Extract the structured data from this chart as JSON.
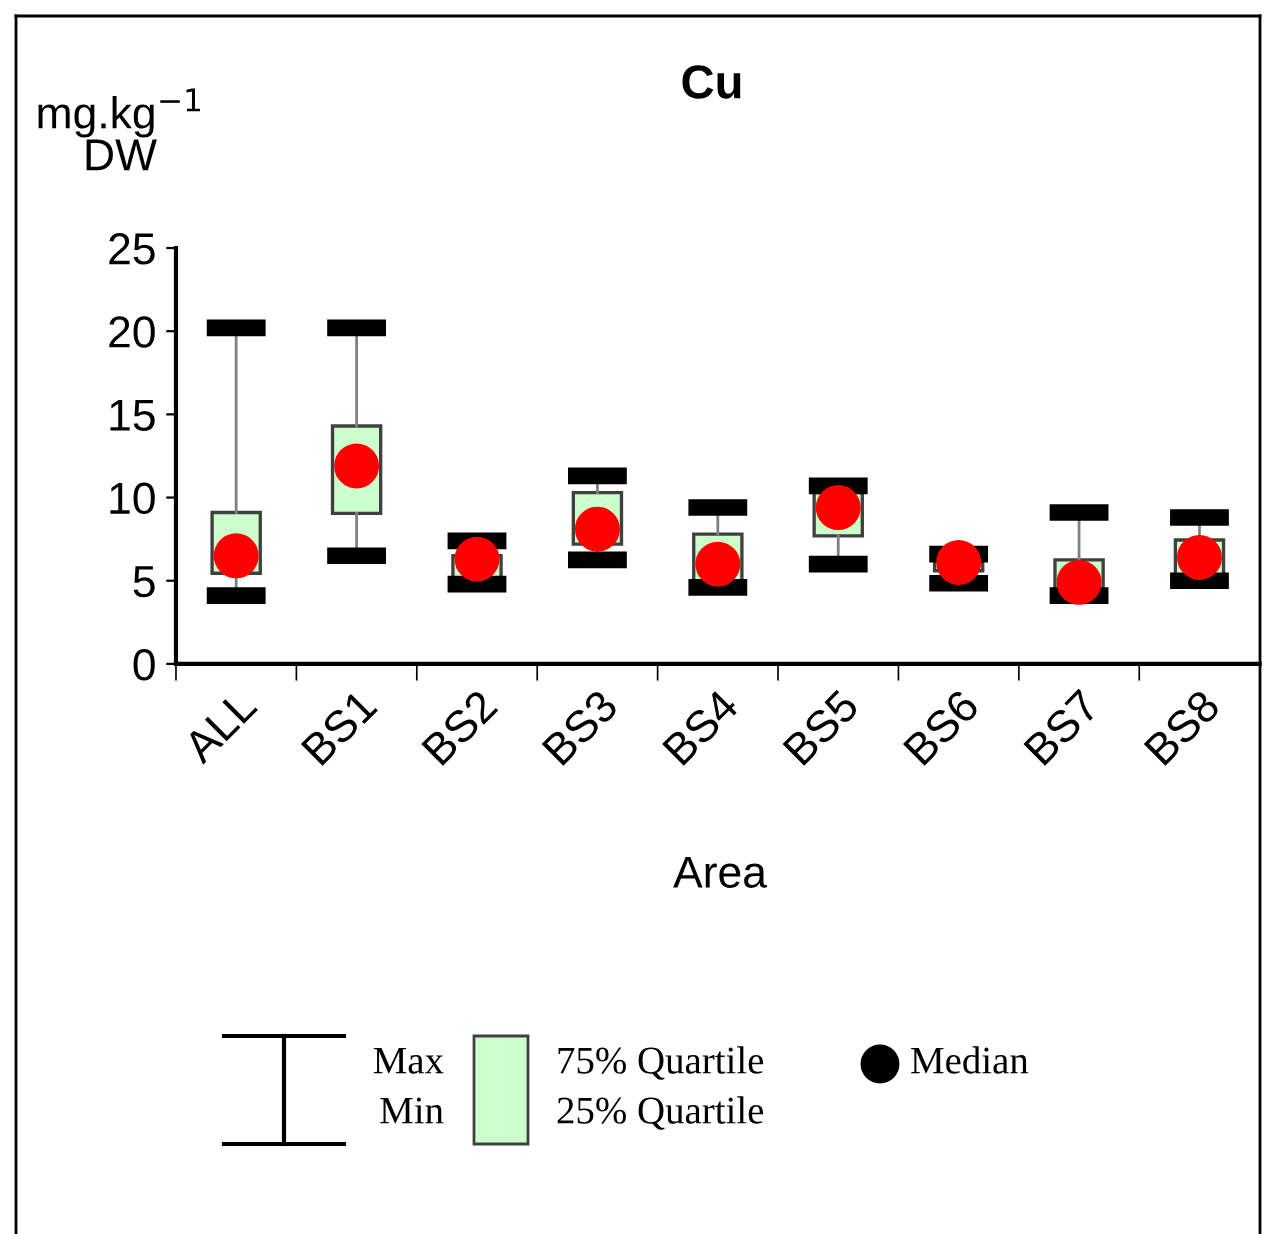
{
  "chart_data": {
    "type": "box",
    "title": "Cu",
    "ylabel": "mg.kg$^{−1}$\nDW",
    "xlabel": "Area",
    "categories": [
      "ALL",
      "BS1",
      "BS2",
      "BS3",
      "BS4",
      "BS5",
      "BS6",
      "BS7",
      "BS8"
    ],
    "color": "#ccffcc",
    "boxes": [
      {
        "low": 4.1,
        "q1": 5.45,
        "median": 6.5,
        "q3": 9.1,
        "high": 20.2
      },
      {
        "low": 6.5,
        "q1": 9.05,
        "median": 11.9,
        "q3": 14.3,
        "high": 20.2
      },
      {
        "low": 4.8,
        "q1": 4.9,
        "median": 6.3,
        "q3": 6.5,
        "high": 7.4
      },
      {
        "low": 6.25,
        "q1": 7.2,
        "median": 8.1,
        "q3": 10.3,
        "high": 11.3
      },
      {
        "low": 4.6,
        "q1": 4.9,
        "median": 6.0,
        "q3": 7.8,
        "high": 9.4
      },
      {
        "low": 6.0,
        "q1": 7.7,
        "median": 9.4,
        "q3": 10.3,
        "high": 10.7
      },
      {
        "low": 4.85,
        "q1": 5.6,
        "median": 6.1,
        "q3": 6.4,
        "high": 6.6
      },
      {
        "low": 4.1,
        "q1": 4.45,
        "median": 4.9,
        "q3": 6.25,
        "high": 9.1
      },
      {
        "low": 5.0,
        "q1": 5.3,
        "median": 6.4,
        "q3": 7.45,
        "high": 8.8
      }
    ],
    "ylim": [
      0,
      25
    ],
    "yticks": [
      0,
      5,
      10,
      15,
      20,
      25
    ],
    "grid": false,
    "annotations": [
      "Max",
      "Min",
      "75% Quartile",
      "25% Quartile",
      "Median"
    ]
  }
}
